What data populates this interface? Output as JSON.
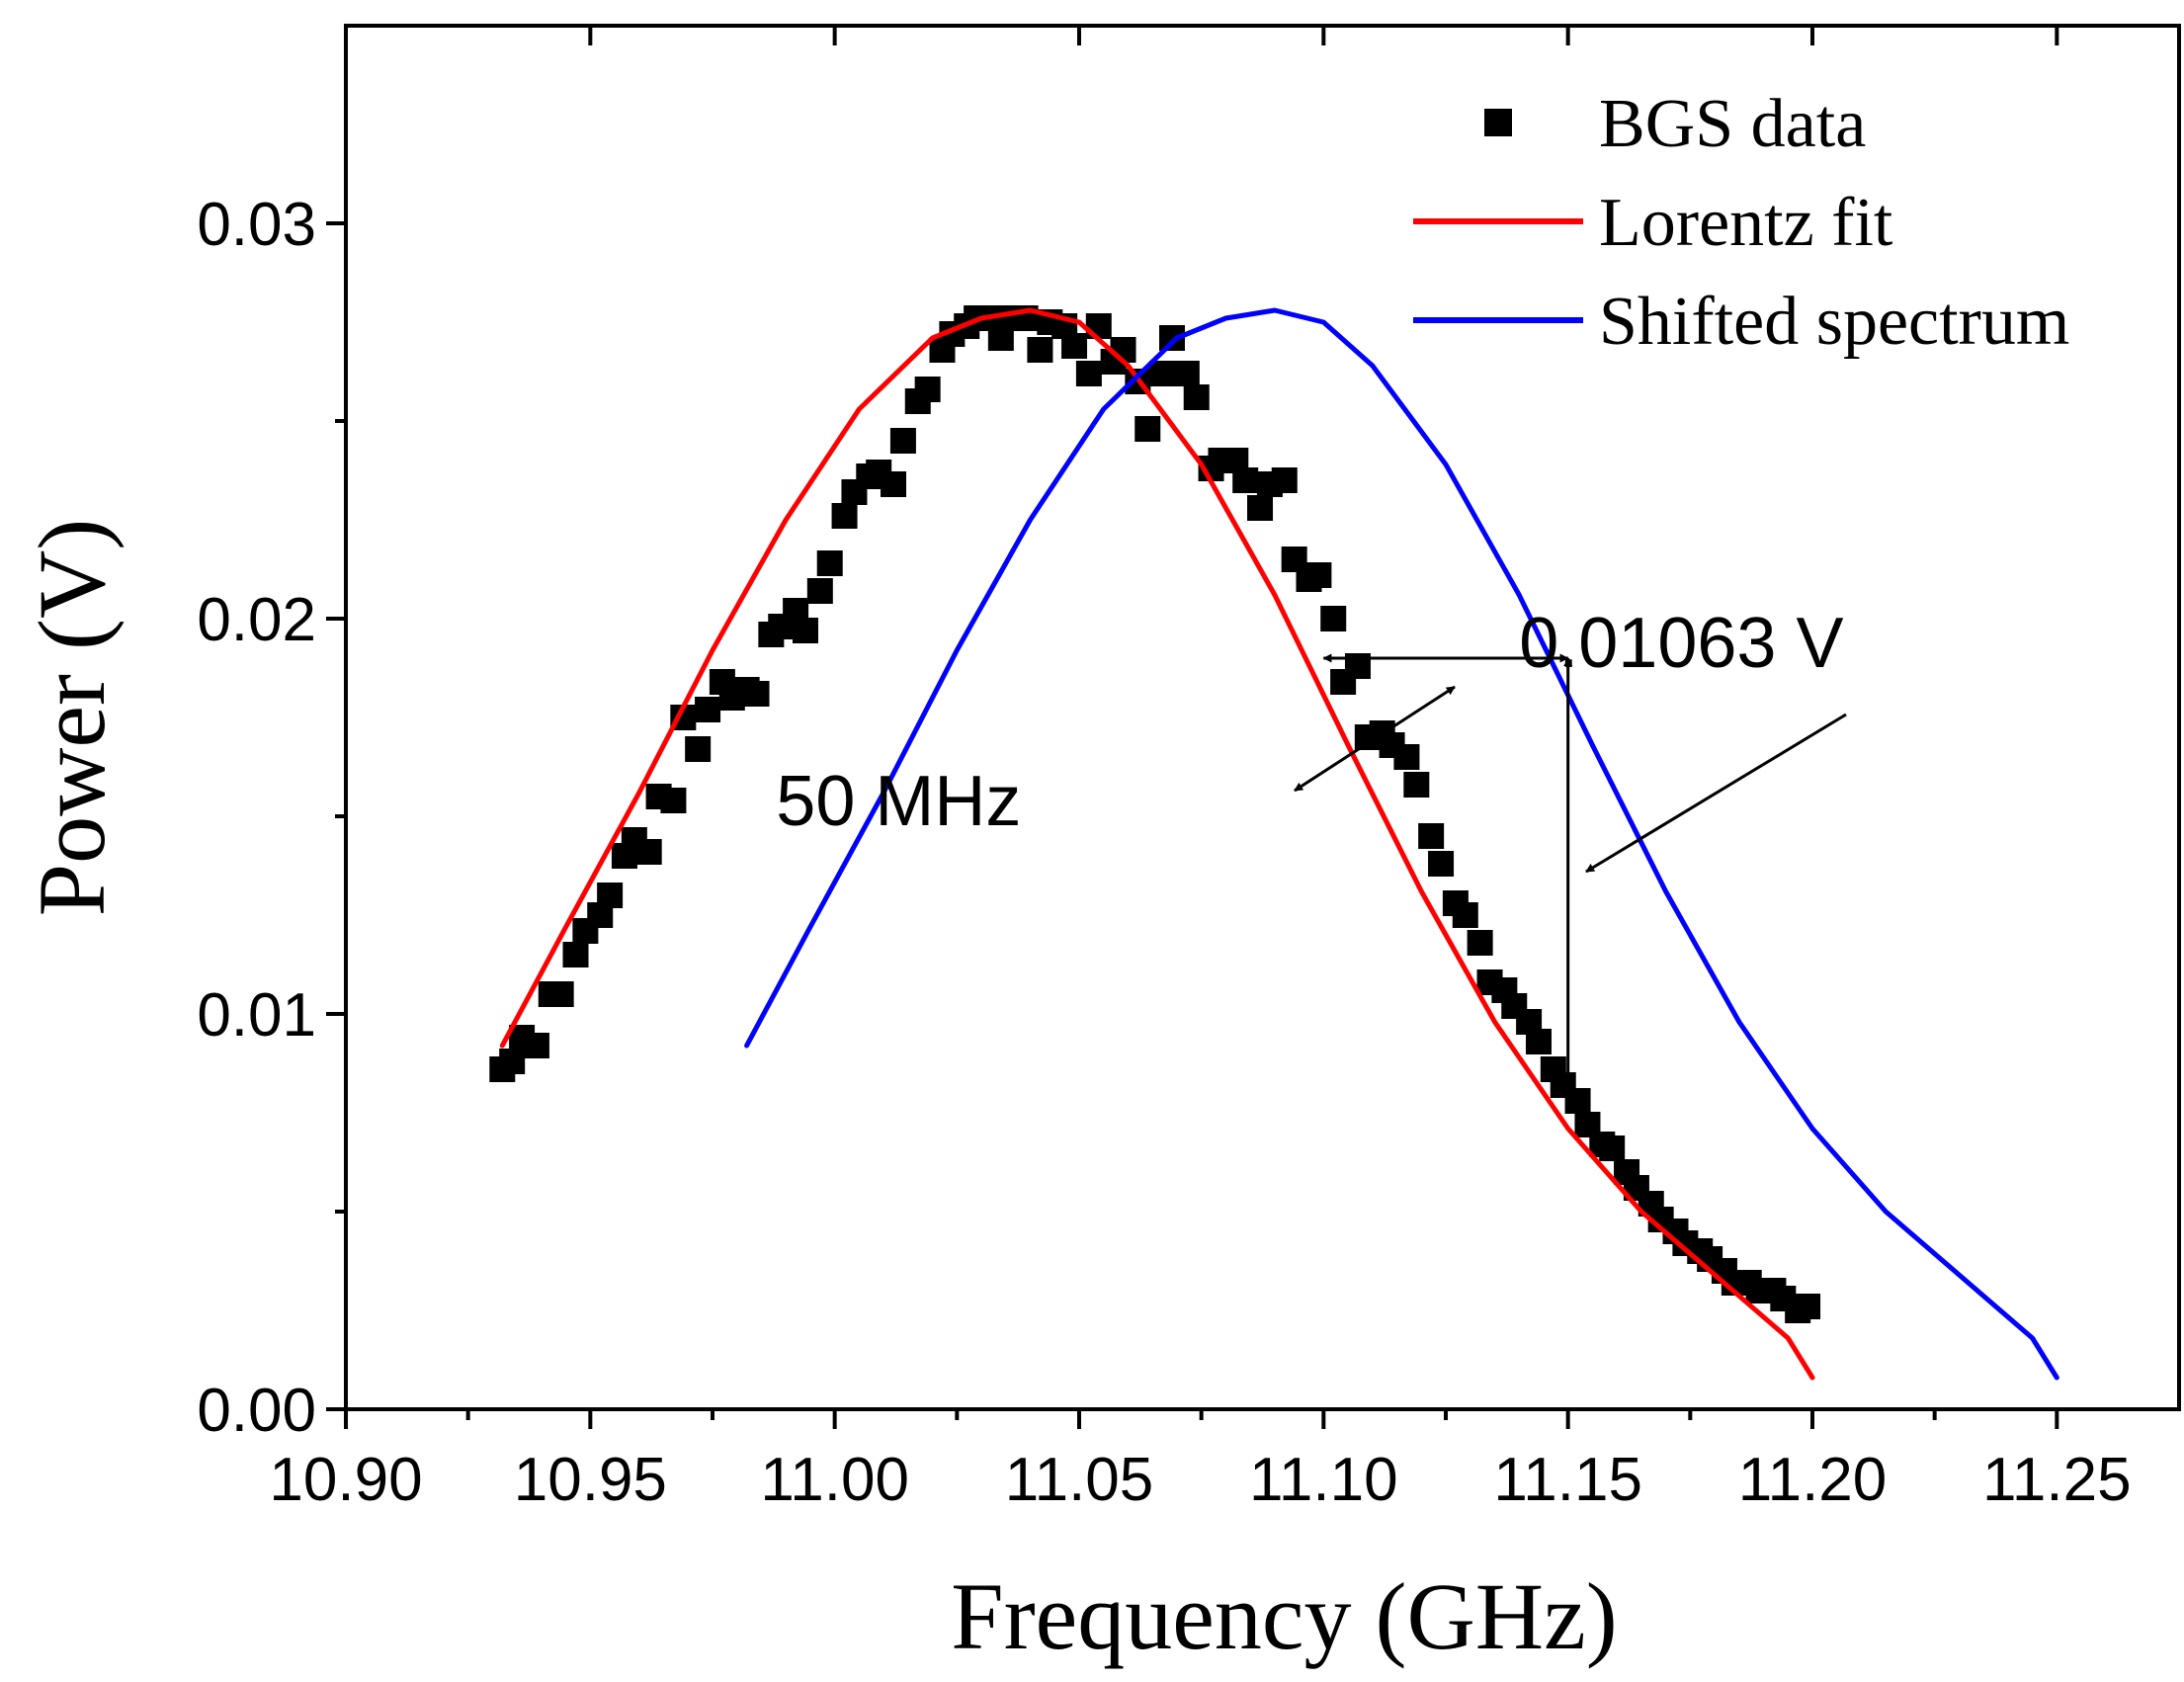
{
  "chart_data": {
    "type": "scatter",
    "xlabel": "Frequency (GHz)",
    "ylabel": "Power (V)",
    "xlim": [
      10.9,
      11.275
    ],
    "ylim": [
      0.0,
      0.035
    ],
    "xticks": [
      10.9,
      10.95,
      11.0,
      11.05,
      11.1,
      11.15,
      11.2,
      11.25
    ],
    "xtick_labels": [
      "10.90",
      "10.95",
      "11.00",
      "11.05",
      "11.10",
      "11.15",
      "11.20",
      "11.25"
    ],
    "yticks": [
      0.0,
      0.01,
      0.02,
      0.03
    ],
    "ytick_labels": [
      "0.00",
      "0.01",
      "0.02",
      "0.03"
    ],
    "grid": false,
    "legend_position": "top-right",
    "series": [
      {
        "name": "BGS data",
        "kind": "scatter",
        "marker": "square",
        "color": "#000000",
        "x": [
          10.932,
          10.934,
          10.936,
          10.939,
          10.942,
          10.944,
          10.947,
          10.949,
          10.952,
          10.954,
          10.957,
          10.959,
          10.962,
          10.964,
          10.967,
          10.969,
          10.972,
          10.974,
          10.977,
          10.979,
          10.982,
          10.984,
          10.987,
          10.989,
          10.992,
          10.994,
          10.997,
          10.999,
          11.002,
          11.004,
          11.007,
          11.009,
          11.012,
          11.014,
          11.017,
          11.019,
          11.022,
          11.024,
          11.027,
          11.029,
          11.032,
          11.034,
          11.037,
          11.039,
          11.042,
          11.044,
          11.047,
          11.049,
          11.052,
          11.054,
          11.057,
          11.059,
          11.062,
          11.064,
          11.067,
          11.069,
          11.072,
          11.074,
          11.077,
          11.079,
          11.082,
          11.084,
          11.087,
          11.089,
          11.092,
          11.094,
          11.097,
          11.099,
          11.102,
          11.104,
          11.107,
          11.109,
          11.112,
          11.114,
          11.117,
          11.119,
          11.122,
          11.124,
          11.127,
          11.129,
          11.132,
          11.134,
          11.137,
          11.139,
          11.142,
          11.144,
          11.147,
          11.149,
          11.152,
          11.154,
          11.157,
          11.159,
          11.162,
          11.164,
          11.167,
          11.169,
          11.172,
          11.174,
          11.177,
          11.179,
          11.182,
          11.184,
          11.187,
          11.189,
          11.192,
          11.194,
          11.197,
          11.199
        ],
        "y": [
          0.0086,
          0.0088,
          0.0094,
          0.0092,
          0.0105,
          0.0105,
          0.0115,
          0.0121,
          0.0125,
          0.013,
          0.014,
          0.0144,
          0.0141,
          0.0155,
          0.0154,
          0.0175,
          0.0167,
          0.0177,
          0.0184,
          0.018,
          0.0182,
          0.0181,
          0.0196,
          0.0198,
          0.0202,
          0.0197,
          0.0207,
          0.0214,
          0.0226,
          0.0232,
          0.0236,
          0.0237,
          0.0234,
          0.0245,
          0.0255,
          0.0258,
          0.0268,
          0.0272,
          0.0274,
          0.0276,
          0.0276,
          0.0271,
          0.0276,
          0.0276,
          0.0268,
          0.0275,
          0.0274,
          0.0269,
          0.0262,
          0.0274,
          0.0265,
          0.0268,
          0.026,
          0.0248,
          0.0262,
          0.0271,
          0.0262,
          0.0256,
          0.0238,
          0.024,
          0.024,
          0.0235,
          0.0228,
          0.0234,
          0.0235,
          0.0215,
          0.021,
          0.0211,
          0.02,
          0.0184,
          0.0188,
          0.017,
          0.0171,
          0.0168,
          0.0165,
          0.0158,
          0.0145,
          0.0138,
          0.0128,
          0.0125,
          0.0118,
          0.0108,
          0.0106,
          0.0102,
          0.0098,
          0.0093,
          0.0086,
          0.0082,
          0.0078,
          0.0072,
          0.0067,
          0.0066,
          0.006,
          0.0056,
          0.0052,
          0.0048,
          0.0045,
          0.0042,
          0.004,
          0.0038,
          0.0035,
          0.0032,
          0.0032,
          0.003,
          0.003,
          0.0028,
          0.0025,
          0.0026
        ]
      },
      {
        "name": "Lorentz fit",
        "kind": "line",
        "color": "#ff0000",
        "x": [
          10.932,
          10.945,
          10.96,
          10.975,
          10.99,
          11.005,
          11.02,
          11.03,
          11.04,
          11.05,
          11.06,
          11.075,
          11.09,
          11.105,
          11.12,
          11.135,
          11.15,
          11.165,
          11.18,
          11.195,
          11.2
        ],
        "y": [
          0.0092,
          0.0122,
          0.0156,
          0.0192,
          0.0225,
          0.0253,
          0.0271,
          0.0276,
          0.0278,
          0.0275,
          0.0264,
          0.0239,
          0.0206,
          0.0168,
          0.0131,
          0.0098,
          0.0071,
          0.005,
          0.0034,
          0.0018,
          0.0008
        ]
      },
      {
        "name": "Shifted spectrum",
        "kind": "line",
        "color": "#0000ff",
        "x": [
          10.982,
          10.995,
          11.01,
          11.025,
          11.04,
          11.055,
          11.07,
          11.08,
          11.09,
          11.1,
          11.11,
          11.125,
          11.14,
          11.155,
          11.17,
          11.185,
          11.2,
          11.215,
          11.23,
          11.245,
          11.25
        ],
        "y": [
          0.0092,
          0.0122,
          0.0156,
          0.0192,
          0.0225,
          0.0253,
          0.0271,
          0.0276,
          0.0278,
          0.0275,
          0.0264,
          0.0239,
          0.0206,
          0.0168,
          0.0131,
          0.0098,
          0.0071,
          0.005,
          0.0034,
          0.0018,
          0.0008
        ]
      }
    ],
    "annotations": [
      {
        "text": "50 MHz",
        "text_at": [
          10.988,
          0.0154
        ],
        "arrow_from": [
          11.047,
          0.0183
        ],
        "arrow_to": [
          11.08,
          0.0183
        ]
      },
      {
        "text": "0.01063 V",
        "text_at": [
          11.14,
          0.0194
        ],
        "arrow_from": [
          11.177,
          0.0176
        ],
        "arrow_to": [
          11.153,
          0.0137
        ]
      }
    ],
    "markers": {
      "horizontal_span": {
        "x1": 11.1,
        "x2": 11.15,
        "y": 0.019
      },
      "vertical_span": {
        "x": 11.15,
        "y1": 0.019,
        "y2": 0.0083
      }
    }
  }
}
